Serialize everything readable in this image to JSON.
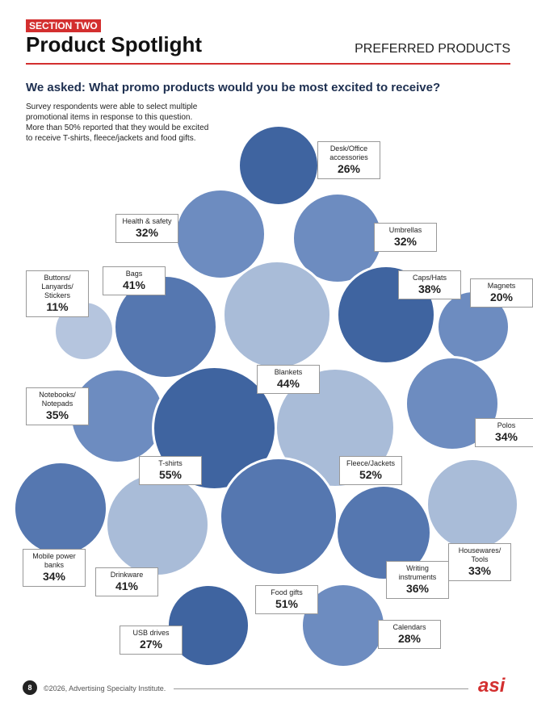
{
  "header": {
    "section": "SECTION TWO",
    "title": "Product Spotlight",
    "tag": "PREFERRED PRODUCTS"
  },
  "chart_data": {
    "type": "bubble",
    "title": "We asked: What promo products would you be most excited to receive?",
    "subtitle": "Survey respondents were able to select multiple promotional items in response to this question. More than 50% reported that they would be excited to receive T-shirts, fleece/jackets and food gifts.",
    "categories": [
      "Desk/Office accessories",
      "Health & safety",
      "Umbrellas",
      "Buttons/ Lanyards/ Stickers",
      "Bags",
      "Blankets",
      "Caps/Hats",
      "Magnets",
      "Notebooks/ Notepads",
      "T-shirts",
      "Fleece/Jackets",
      "Polos",
      "Mobile power banks",
      "Drinkware",
      "Food gifts",
      "Writing instruments",
      "Housewares/ Tools",
      "USB drives",
      "Calendars"
    ],
    "values": [
      26,
      32,
      32,
      11,
      41,
      44,
      38,
      20,
      35,
      55,
      52,
      34,
      34,
      41,
      51,
      36,
      33,
      27,
      28
    ],
    "value_labels": [
      "26%",
      "32%",
      "32%",
      "11%",
      "41%",
      "44%",
      "38%",
      "20%",
      "35%",
      "55%",
      "52%",
      "34%",
      "34%",
      "41%",
      "51%",
      "36%",
      "33%",
      "27%",
      "28%"
    ],
    "colors": [
      "#3f64a0",
      "#6d8cc0",
      "#6d8cc0",
      "#b5c5de",
      "#5577b0",
      "#a9bcd8",
      "#3f64a0",
      "#6d8cc0",
      "#6d8cc0",
      "#3f64a0",
      "#a9bcd8",
      "#6d8cc0",
      "#5577b0",
      "#a9bcd8",
      "#5577b0",
      "#5577b0",
      "#a9bcd8",
      "#3f64a0",
      "#6d8cc0"
    ]
  },
  "footer": {
    "page": "8",
    "copyright": "©2026, Advertising Specialty Institute.",
    "logo": "asi"
  }
}
